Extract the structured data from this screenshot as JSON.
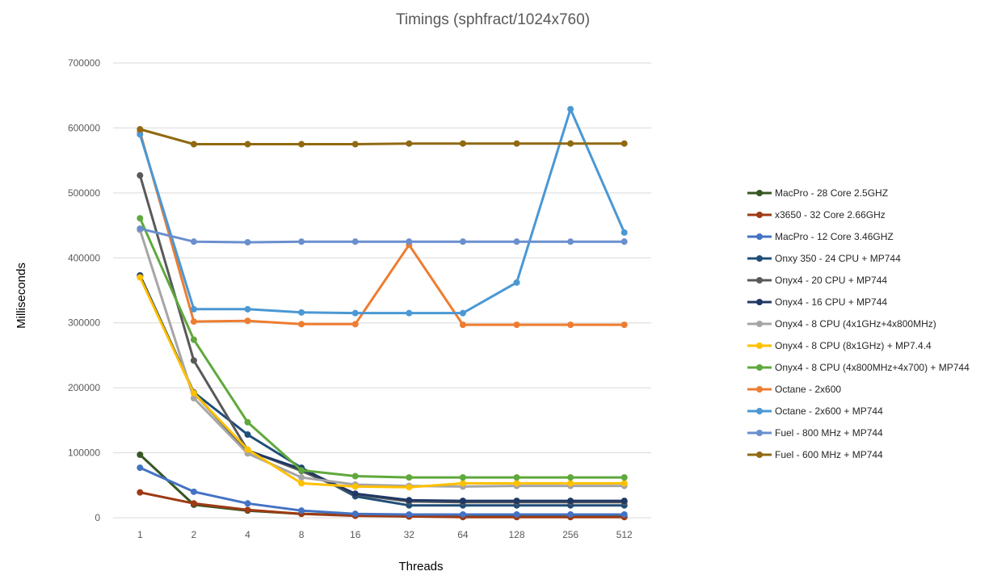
{
  "chart_data": {
    "type": "line",
    "title": "Timings (sphfract/1024x760)",
    "xlabel": "Threads",
    "ylabel": "Milliseconds",
    "categories": [
      "1",
      "2",
      "4",
      "8",
      "16",
      "32",
      "64",
      "128",
      "256",
      "512"
    ],
    "ylim": [
      0,
      700000
    ],
    "yticks": [
      0,
      100000,
      200000,
      300000,
      400000,
      500000,
      600000,
      700000
    ],
    "ytick_labels": [
      "0",
      "100000",
      "200000",
      "300000",
      "400000",
      "500000",
      "600000",
      "700000"
    ],
    "grid": true,
    "legend_position": "right",
    "series": [
      {
        "name": "MacPro - 28 Core 2.5GHZ",
        "color": "#375623",
        "values": [
          97000,
          20000,
          11000,
          6000,
          4000,
          2000,
          1500,
          1500,
          1500,
          1500
        ]
      },
      {
        "name": "x3650 - 32 Core 2.66GHz",
        "color": "#9E3A14",
        "values": [
          39000,
          22000,
          12000,
          6000,
          3000,
          2000,
          1000,
          1000,
          1000,
          1000
        ]
      },
      {
        "name": "MacPro - 12 Core 3.46GHZ",
        "color": "#4472C4",
        "values": [
          77000,
          40000,
          22000,
          11000,
          6000,
          5000,
          5000,
          5000,
          5000,
          5000
        ]
      },
      {
        "name": "Onxy 350 - 24 CPU + MP744",
        "color": "#1F4E79",
        "values": [
          373000,
          193000,
          128000,
          77000,
          33000,
          19000,
          19000,
          19000,
          19000,
          19000
        ]
      },
      {
        "name": "Onyx4 - 20 CPU + MP744",
        "color": "#595959",
        "values": [
          527000,
          242000,
          104000,
          72000,
          36000,
          25000,
          24000,
          24000,
          24000,
          24000
        ]
      },
      {
        "name": "Onyx4 - 16 CPU + MP744",
        "color": "#203864",
        "values": [
          372000,
          192000,
          103000,
          75000,
          37000,
          27000,
          26000,
          26000,
          26000,
          26000
        ]
      },
      {
        "name": "Onyx4 - 8 CPU (4x1GHz+4x800MHz)",
        "color": "#A5A5A5",
        "values": [
          443000,
          184000,
          99000,
          62000,
          51000,
          49000,
          48000,
          49000,
          49000,
          49000
        ]
      },
      {
        "name": "Onyx4 - 8 CPU (8x1GHz) + MP7.4.4",
        "color": "#FFC000",
        "values": [
          370000,
          192000,
          105000,
          53000,
          48000,
          47000,
          53000,
          53000,
          53000,
          53000
        ]
      },
      {
        "name": "Onyx4 - 8 CPU (4x800MHz+4x700) + MP744",
        "color": "#5FA83D",
        "values": [
          461000,
          274000,
          147000,
          73000,
          64000,
          62000,
          62000,
          62000,
          62000,
          62000
        ]
      },
      {
        "name": "Octane - 2x600",
        "color": "#ED7D31",
        "values": [
          594000,
          302000,
          303000,
          298000,
          298000,
          420000,
          297000,
          297000,
          297000,
          297000
        ]
      },
      {
        "name": "Octane - 2x600 + MP744",
        "color": "#4A98D4",
        "values": [
          590000,
          321000,
          321000,
          316000,
          315000,
          315000,
          315000,
          362000,
          629000,
          439000
        ]
      },
      {
        "name": "Fuel - 800 MHz + MP744",
        "color": "#6A8FCE",
        "values": [
          445000,
          425000,
          424000,
          425000,
          425000,
          425000,
          425000,
          425000,
          425000,
          425000
        ]
      },
      {
        "name": "Fuel - 600 MHz + MP744",
        "color": "#906912",
        "values": [
          598000,
          575000,
          575000,
          575000,
          575000,
          576000,
          576000,
          576000,
          576000,
          576000
        ]
      }
    ]
  }
}
